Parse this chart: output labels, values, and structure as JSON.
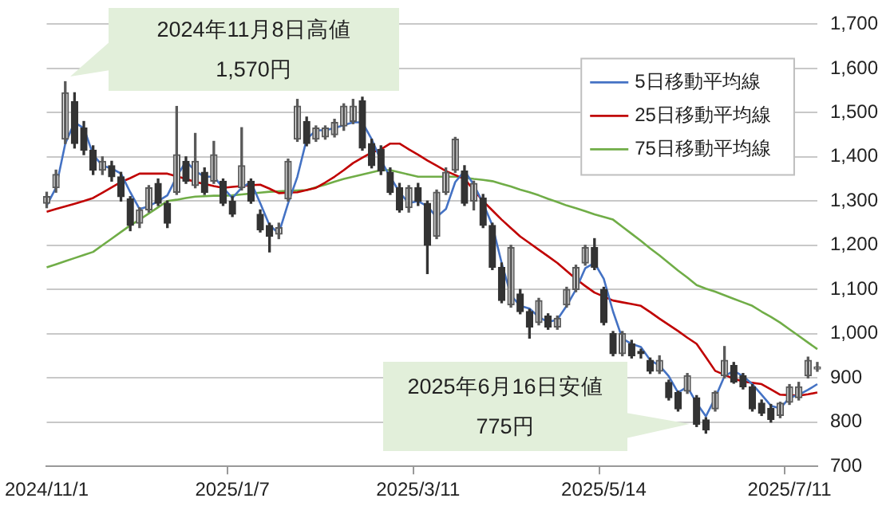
{
  "chart_data": {
    "type": "candlestick",
    "categories": [
      "2024/11/1",
      null,
      null,
      null,
      null,
      null,
      null,
      null,
      null,
      null,
      null,
      null,
      null,
      null,
      null,
      null,
      null,
      null,
      null,
      null,
      "2025/1/7",
      null,
      null,
      null,
      null,
      null,
      null,
      null,
      null,
      null,
      null,
      null,
      null,
      null,
      null,
      null,
      null,
      null,
      null,
      null,
      "2025/3/11",
      null,
      null,
      null,
      null,
      null,
      null,
      null,
      null,
      null,
      null,
      null,
      null,
      null,
      null,
      null,
      null,
      null,
      null,
      null,
      "2025/5/14",
      null,
      null,
      null,
      null,
      null,
      null,
      null,
      null,
      null,
      null,
      null,
      null,
      null,
      null,
      null,
      null,
      null,
      null,
      null,
      "2025/7/11",
      null,
      null,
      null
    ],
    "ohlc": [
      [
        1295,
        1320,
        1285,
        1310
      ],
      [
        1330,
        1370,
        1320,
        1360
      ],
      [
        1440,
        1570,
        1430,
        1545
      ],
      [
        1525,
        1545,
        1420,
        1430
      ],
      [
        1465,
        1480,
        1405,
        1415
      ],
      [
        1415,
        1425,
        1360,
        1370
      ],
      [
        1370,
        1400,
        1360,
        1390
      ],
      [
        1380,
        1390,
        1345,
        1355
      ],
      [
        1355,
        1365,
        1300,
        1310
      ],
      [
        1305,
        1310,
        1233,
        1245
      ],
      [
        1250,
        1285,
        1240,
        1280
      ],
      [
        1280,
        1335,
        1275,
        1330
      ],
      [
        1340,
        1350,
        1290,
        1295
      ],
      [
        1295,
        1300,
        1240,
        1250
      ],
      [
        1320,
        1514,
        1315,
        1405
      ],
      [
        1390,
        1400,
        1340,
        1345
      ],
      [
        1335,
        1453,
        1330,
        1390
      ],
      [
        1365,
        1375,
        1315,
        1320
      ],
      [
        1345,
        1435,
        1340,
        1405
      ],
      [
        1345,
        1350,
        1290,
        1295
      ],
      [
        1300,
        1310,
        1265,
        1270
      ],
      [
        1330,
        1466,
        1325,
        1380
      ],
      [
        1345,
        1350,
        1295,
        1300
      ],
      [
        1270,
        1280,
        1230,
        1235
      ],
      [
        1245,
        1250,
        1185,
        1220
      ],
      [
        1225,
        1250,
        1215,
        1240
      ],
      [
        1305,
        1395,
        1300,
        1390
      ],
      [
        1440,
        1530,
        1435,
        1515
      ],
      [
        1480,
        1490,
        1425,
        1430
      ],
      [
        1440,
        1470,
        1435,
        1465
      ],
      [
        1445,
        1470,
        1440,
        1465
      ],
      [
        1450,
        1485,
        1445,
        1478
      ],
      [
        1470,
        1520,
        1460,
        1515
      ],
      [
        1480,
        1530,
        1475,
        1515
      ],
      [
        1527,
        1535,
        1415,
        1420
      ],
      [
        1430,
        1440,
        1375,
        1380
      ],
      [
        1417,
        1425,
        1360,
        1368
      ],
      [
        1365,
        1375,
        1315,
        1320
      ],
      [
        1330,
        1340,
        1275,
        1280
      ],
      [
        1285,
        1335,
        1275,
        1330
      ],
      [
        1330,
        1340,
        1290,
        1300
      ],
      [
        1295,
        1300,
        1136,
        1200
      ],
      [
        1220,
        1325,
        1215,
        1320
      ],
      [
        1320,
        1375,
        1315,
        1365
      ],
      [
        1370,
        1444,
        1365,
        1440
      ],
      [
        1368,
        1380,
        1290,
        1295
      ],
      [
        1300,
        1345,
        1280,
        1340
      ],
      [
        1307,
        1315,
        1240,
        1245
      ],
      [
        1245,
        1250,
        1145,
        1150
      ],
      [
        1150,
        1160,
        1070,
        1075
      ],
      [
        1065,
        1200,
        1060,
        1195
      ],
      [
        1090,
        1100,
        1045,
        1050
      ],
      [
        1050,
        1055,
        990,
        1015
      ],
      [
        1025,
        1080,
        1020,
        1075
      ],
      [
        1040,
        1045,
        1010,
        1015
      ],
      [
        1015,
        1040,
        1010,
        1035
      ],
      [
        1065,
        1105,
        1060,
        1100
      ],
      [
        1100,
        1155,
        1095,
        1150
      ],
      [
        1160,
        1200,
        1155,
        1195
      ],
      [
        1195,
        1215,
        1145,
        1150
      ],
      [
        1100,
        1105,
        1020,
        1025
      ],
      [
        1000,
        1005,
        950,
        955
      ],
      [
        955,
        1005,
        950,
        1000
      ],
      [
        977,
        985,
        945,
        950
      ],
      [
        960,
        965,
        945,
        955
      ],
      [
        940,
        945,
        910,
        915
      ],
      [
        915,
        950,
        910,
        940
      ],
      [
        890,
        895,
        850,
        855
      ],
      [
        867,
        870,
        825,
        830
      ],
      [
        870,
        910,
        865,
        905
      ],
      [
        855,
        860,
        790,
        795
      ],
      [
        805,
        810,
        775,
        782
      ],
      [
        830,
        870,
        825,
        867
      ],
      [
        905,
        971,
        900,
        940
      ],
      [
        928,
        935,
        888,
        891
      ],
      [
        905,
        910,
        875,
        880
      ],
      [
        880,
        885,
        825,
        830
      ],
      [
        843,
        850,
        815,
        820
      ],
      [
        831,
        840,
        800,
        806
      ],
      [
        815,
        845,
        810,
        843
      ],
      [
        845,
        885,
        840,
        880
      ],
      [
        855,
        890,
        850,
        880
      ],
      [
        905,
        947,
        900,
        940
      ],
      [
        920,
        935,
        915,
        925
      ]
    ],
    "series": [
      {
        "name": "5日移動平均線",
        "type": "line",
        "color": "#4472c4",
        "values": [
          1290,
          1330,
          1430,
          1478,
          1465,
          1405,
          1380,
          1374,
          1362,
          1320,
          1282,
          1288,
          1300,
          1313,
          1355,
          1390,
          1368,
          1355,
          1355,
          1330,
          1307,
          1330,
          1343,
          1295,
          1245,
          1227,
          1295,
          1355,
          1440,
          1460,
          1460,
          1465,
          1472,
          1478,
          1478,
          1440,
          1392,
          1355,
          1320,
          1295,
          1300,
          1288,
          1264,
          1282,
          1343,
          1368,
          1337,
          1295,
          1245,
          1160,
          1087,
          1063,
          1057,
          1038,
          1026,
          1032,
          1063,
          1100,
          1148,
          1160,
          1124,
          1050,
          989,
          977,
          970,
          940,
          928,
          904,
          867,
          880,
          843,
          813,
          855,
          904,
          916,
          904,
          886,
          862,
          837,
          831,
          855,
          862,
          873,
          886
        ]
      },
      {
        "name": "25日移動平均線",
        "type": "line",
        "color": "#c00000",
        "values": [
          1276,
          1282,
          1288,
          1294,
          1300,
          1307,
          1319,
          1331,
          1343,
          1352,
          1362,
          1362,
          1362,
          1362,
          1356,
          1350,
          1343,
          1339,
          1334,
          1330,
          1332,
          1334,
          1336,
          1337,
          1328,
          1318,
          1319,
          1320,
          1325,
          1330,
          1342,
          1355,
          1370,
          1386,
          1398,
          1410,
          1417,
          1430,
          1430,
          1417,
          1405,
          1392,
          1380,
          1368,
          1359,
          1350,
          1325,
          1300,
          1279,
          1258,
          1239,
          1220,
          1205,
          1190,
          1175,
          1160,
          1142,
          1124,
          1108,
          1093,
          1084,
          1075,
          1071,
          1067,
          1063,
          1049,
          1034,
          1020,
          1006,
          991,
          977,
          947,
          916,
          907,
          898,
          892,
          889,
          886,
          874,
          862,
          861,
          860,
          863,
          867
        ]
      },
      {
        "name": "75日移動平均線",
        "type": "line",
        "color": "#70ad47",
        "values": [
          1150,
          1157,
          1164,
          1171,
          1178,
          1185,
          1200,
          1215,
          1230,
          1245,
          1258,
          1272,
          1286,
          1300,
          1303,
          1307,
          1310,
          1311,
          1312,
          1312,
          1313,
          1315,
          1317,
          1319,
          1321,
          1322,
          1323,
          1324,
          1325,
          1331,
          1337,
          1344,
          1350,
          1355,
          1360,
          1365,
          1370,
          1370,
          1365,
          1360,
          1355,
          1355,
          1355,
          1355,
          1355,
          1353,
          1350,
          1348,
          1345,
          1339,
          1333,
          1326,
          1320,
          1313,
          1305,
          1298,
          1290,
          1284,
          1277,
          1270,
          1264,
          1258,
          1242,
          1226,
          1210,
          1193,
          1177,
          1160,
          1143,
          1127,
          1110,
          1102,
          1095,
          1087,
          1079,
          1071,
          1063,
          1050,
          1038,
          1025,
          1010,
          995,
          980,
          965
        ]
      }
    ],
    "ylim": [
      700,
      1700
    ],
    "yticks": [
      {
        "value": 700,
        "label": "700"
      },
      {
        "value": 800,
        "label": "800"
      },
      {
        "value": 900,
        "label": "900"
      },
      {
        "value": 1000,
        "label": "1,000"
      },
      {
        "value": 1100,
        "label": "1,100"
      },
      {
        "value": 1200,
        "label": "1,200"
      },
      {
        "value": 1300,
        "label": "1,300"
      },
      {
        "value": 1400,
        "label": "1,400"
      },
      {
        "value": 1500,
        "label": "1,500"
      },
      {
        "value": 1600,
        "label": "1,600"
      },
      {
        "value": 1700,
        "label": "1,700"
      }
    ],
    "grid": "y",
    "legend": "top right",
    "annotations": [
      "2024年11月8日高値\n1,570円",
      "2025年6月16日安値\n775円"
    ]
  }
}
